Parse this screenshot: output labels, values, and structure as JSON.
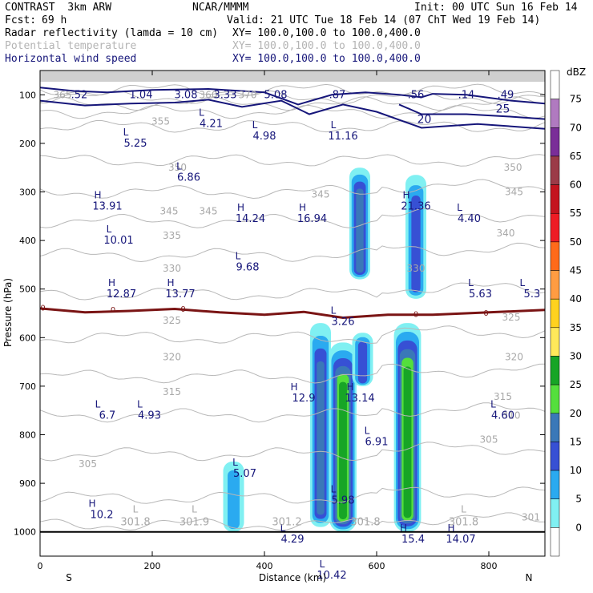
{
  "header": {
    "model": "CONTRAST  3km ARW",
    "org": "NCAR/MMMM",
    "init": "Init: 00 UTC Sun 16 Feb 14",
    "fcst_label": "Fcst:",
    "fcst_value": "69 h",
    "valid": "Valid: 21 UTC Tue 18 Feb 14 (07 ChT Wed 19 Feb 14)",
    "fields": [
      {
        "name": "Radar reflectivity (lamda = 10 cm)",
        "xy": "XY= 100.0,100.0 to 100.0,400.0",
        "color": "#000000"
      },
      {
        "name": "Potential temperature",
        "xy": "XY= 100.0,100.0 to 100.0,400.0",
        "color": "#b4b4b4"
      },
      {
        "name": "Horizontal wind speed",
        "xy": "XY= 100.0,100.0 to 100.0,400.0",
        "color": "#16167a"
      }
    ]
  },
  "chart_data": {
    "type": "contour",
    "xlabel": "Distance (km)",
    "ylabel": "Pressure (hPa)",
    "xlim": [
      0,
      900
    ],
    "ylim": [
      1050,
      50
    ],
    "x_ticks": [
      0,
      200,
      400,
      600,
      800
    ],
    "y_ticks": [
      100,
      200,
      300,
      400,
      500,
      600,
      700,
      800,
      900,
      1000
    ],
    "x_end_labels": {
      "left": "S",
      "right": "N"
    },
    "colorbar": {
      "title": "dBZ",
      "levels": [
        75,
        70,
        65,
        60,
        55,
        50,
        45,
        40,
        35,
        30,
        25,
        20,
        15,
        10,
        5,
        0
      ],
      "colors": [
        "#ffffff",
        "#b07ac0",
        "#7a2e98",
        "#9b3b47",
        "#c4141e",
        "#ee1c24",
        "#ff6a1a",
        "#ff9c42",
        "#ffd21f",
        "#ffe95a",
        "#17a526",
        "#54df3c",
        "#3a78b8",
        "#3750d4",
        "#2aaaf0",
        "#80f0f2",
        "#ffffff"
      ]
    },
    "reflectivity_cells": [
      {
        "x": 570,
        "p_top": 250,
        "p_bottom": 480,
        "max_dbz": 20
      },
      {
        "x": 500,
        "p_top": 570,
        "p_bottom": 990,
        "max_dbz": 20
      },
      {
        "x": 540,
        "p_top": 610,
        "p_bottom": 1000,
        "max_dbz": 30
      },
      {
        "x": 575,
        "p_top": 590,
        "p_bottom": 700,
        "max_dbz": 15
      },
      {
        "x": 670,
        "p_top": 265,
        "p_bottom": 520,
        "max_dbz": 15
      },
      {
        "x": 655,
        "p_top": 570,
        "p_bottom": 1000,
        "max_dbz": 30
      },
      {
        "x": 345,
        "p_top": 855,
        "p_bottom": 1000,
        "max_dbz": 10
      }
    ],
    "theta_labels": [
      {
        "x": 40,
        "p": 100,
        "text": "365"
      },
      {
        "x": 300,
        "p": 100,
        "text": "360"
      },
      {
        "x": 370,
        "p": 100,
        "text": "370"
      },
      {
        "x": 215,
        "p": 155,
        "text": "355"
      },
      {
        "x": 245,
        "p": 250,
        "text": "350"
      },
      {
        "x": 843,
        "p": 250,
        "text": "350"
      },
      {
        "x": 500,
        "p": 305,
        "text": "345"
      },
      {
        "x": 230,
        "p": 340,
        "text": "345"
      },
      {
        "x": 300,
        "p": 340,
        "text": "345"
      },
      {
        "x": 845,
        "p": 300,
        "text": "345"
      },
      {
        "x": 830,
        "p": 385,
        "text": "340"
      },
      {
        "x": 235,
        "p": 390,
        "text": "335"
      },
      {
        "x": 235,
        "p": 458,
        "text": "330"
      },
      {
        "x": 670,
        "p": 458,
        "text": "330"
      },
      {
        "x": 840,
        "p": 558,
        "text": "325"
      },
      {
        "x": 235,
        "p": 565,
        "text": "325"
      },
      {
        "x": 235,
        "p": 640,
        "text": "320"
      },
      {
        "x": 845,
        "p": 640,
        "text": "320"
      },
      {
        "x": 235,
        "p": 712,
        "text": "315"
      },
      {
        "x": 825,
        "p": 722,
        "text": "315"
      },
      {
        "x": 840,
        "p": 760,
        "text": "310"
      },
      {
        "x": 800,
        "p": 810,
        "text": "305"
      },
      {
        "x": 85,
        "p": 860,
        "text": "305"
      },
      {
        "x": 875,
        "p": 970,
        "text": "301"
      }
    ],
    "wind_labels": [
      {
        "x": 70,
        "p": 100,
        "text": ".52",
        "hl": ""
      },
      {
        "x": 180,
        "p": 100,
        "text": "1.04",
        "hl": ""
      },
      {
        "x": 260,
        "p": 100,
        "text": "3.08",
        "hl": ""
      },
      {
        "x": 330,
        "p": 100,
        "text": "3.33",
        "hl": ""
      },
      {
        "x": 420,
        "p": 100,
        "text": "5.08",
        "hl": ""
      },
      {
        "x": 530,
        "p": 100,
        "text": ".87",
        "hl": ""
      },
      {
        "x": 670,
        "p": 100,
        "text": ".56",
        "hl": ""
      },
      {
        "x": 760,
        "p": 100,
        "text": ".14",
        "hl": ""
      },
      {
        "x": 830,
        "p": 100,
        "text": ".49",
        "hl": ""
      },
      {
        "x": 305,
        "p": 160,
        "text": "4.21",
        "hl": "L"
      },
      {
        "x": 170,
        "p": 200,
        "text": "5.25",
        "hl": "L"
      },
      {
        "x": 400,
        "p": 185,
        "text": "4.98",
        "hl": "L"
      },
      {
        "x": 540,
        "p": 185,
        "text": "11.16",
        "hl": "L"
      },
      {
        "x": 265,
        "p": 270,
        "text": "6.86",
        "hl": "L"
      },
      {
        "x": 120,
        "p": 330,
        "text": "13.91",
        "hl": "H"
      },
      {
        "x": 375,
        "p": 355,
        "text": "14.24",
        "hl": "H"
      },
      {
        "x": 485,
        "p": 355,
        "text": "16.94",
        "hl": "H"
      },
      {
        "x": 670,
        "p": 330,
        "text": "21.36",
        "hl": "H"
      },
      {
        "x": 765,
        "p": 355,
        "text": "4.40",
        "hl": "L"
      },
      {
        "x": 140,
        "p": 400,
        "text": "10.01",
        "hl": "L"
      },
      {
        "x": 370,
        "p": 455,
        "text": "9.68",
        "hl": "L"
      },
      {
        "x": 145,
        "p": 510,
        "text": "12.87",
        "hl": "H"
      },
      {
        "x": 250,
        "p": 510,
        "text": "13.77",
        "hl": "H"
      },
      {
        "x": 785,
        "p": 510,
        "text": "5.63",
        "hl": "L"
      },
      {
        "x": 877,
        "p": 510,
        "text": "5.3",
        "hl": "L"
      },
      {
        "x": 540,
        "p": 567,
        "text": "3.26",
        "hl": "L"
      },
      {
        "x": 470,
        "p": 725,
        "text": "12.9",
        "hl": "H"
      },
      {
        "x": 570,
        "p": 725,
        "text": "13.14",
        "hl": "H"
      },
      {
        "x": 120,
        "p": 760,
        "text": "6.7",
        "hl": "L"
      },
      {
        "x": 195,
        "p": 760,
        "text": "4.93",
        "hl": "L"
      },
      {
        "x": 600,
        "p": 815,
        "text": "6.91",
        "hl": "L"
      },
      {
        "x": 825,
        "p": 760,
        "text": "4.60",
        "hl": "L"
      },
      {
        "x": 365,
        "p": 880,
        "text": "5.07",
        "hl": "L"
      },
      {
        "x": 540,
        "p": 935,
        "text": "5.98",
        "hl": "L"
      },
      {
        "x": 110,
        "p": 965,
        "text": "10.2",
        "hl": "H"
      },
      {
        "x": 450,
        "p": 1015,
        "text": "4.29",
        "hl": "L"
      },
      {
        "x": 665,
        "p": 1015,
        "text": "15.4",
        "hl": "H"
      },
      {
        "x": 750,
        "p": 1015,
        "text": "14.07",
        "hl": "H"
      },
      {
        "x": 520,
        "p": 1090,
        "text": "10.42",
        "hl": "L"
      }
    ],
    "wind_contour_labels": [
      {
        "x": 685,
        "p": 150,
        "text": "20"
      },
      {
        "x": 825,
        "p": 128,
        "text": "25"
      }
    ],
    "bottom_labels": [
      {
        "x": 170,
        "p": 1090,
        "text": "301.8",
        "hl": "L"
      },
      {
        "x": 275,
        "p": 1090,
        "text": "301.9",
        "hl": "L"
      },
      {
        "x": 440,
        "p": 1090,
        "text": "301.2",
        "hl": ""
      },
      {
        "x": 580,
        "p": 1090,
        "text": "301.8",
        "hl": ""
      },
      {
        "x": 755,
        "p": 1090,
        "text": "301.8",
        "hl": "L"
      }
    ],
    "zero_isotherm_labels": [
      {
        "x": 5,
        "p": 538,
        "text": "0"
      },
      {
        "x": 130,
        "p": 542,
        "text": "0"
      },
      {
        "x": 255,
        "p": 540,
        "text": "0"
      },
      {
        "x": 670,
        "p": 551,
        "text": "0"
      },
      {
        "x": 795,
        "p": 548,
        "text": "0"
      }
    ]
  }
}
